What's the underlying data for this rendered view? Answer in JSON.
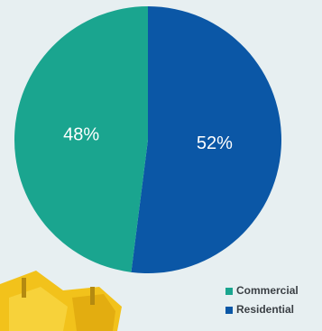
{
  "chart_data": {
    "type": "pie",
    "categories": [
      "Commercial",
      "Residential"
    ],
    "values": [
      48,
      52
    ],
    "value_labels": [
      "48%",
      "52%"
    ],
    "colors": [
      "#1aa58f",
      "#0b57a6"
    ],
    "legend": "bottom-right"
  }
}
